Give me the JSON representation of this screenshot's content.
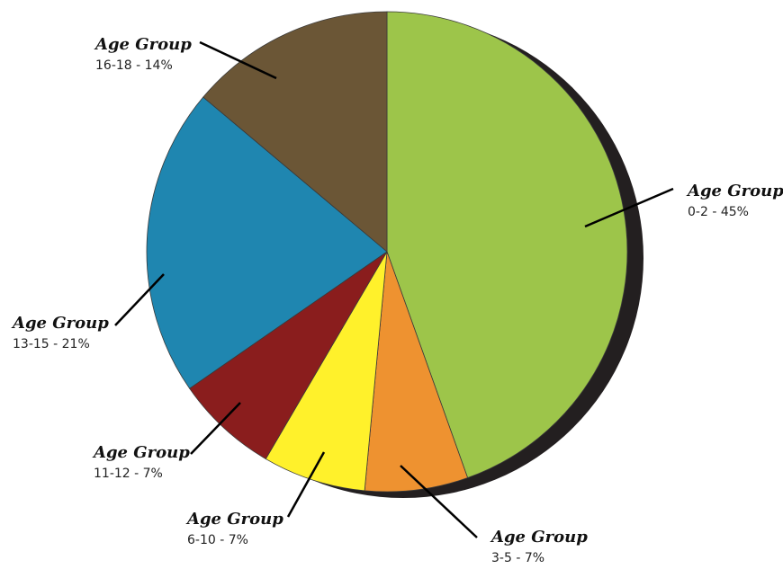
{
  "chart_data": {
    "type": "pie",
    "slices": [
      {
        "title": "Age Group",
        "category": "0-2",
        "value": 45,
        "value_text": "45%",
        "color": "#9dc54a"
      },
      {
        "title": "Age Group",
        "category": "3-5",
        "value": 7,
        "value_text": "7%",
        "color": "#ee9230"
      },
      {
        "title": "Age Group",
        "category": "6-10",
        "value": 7,
        "value_text": "7%",
        "color": "#fff12b"
      },
      {
        "title": "Age Group",
        "category": "11-12",
        "value": 7,
        "value_text": "7%",
        "color": "#8a1d1d"
      },
      {
        "title": "Age Group",
        "category": "13-15",
        "value": 21,
        "value_text": "21%",
        "color": "#1f86b0"
      },
      {
        "title": "Age Group",
        "category": "16-18",
        "value": 14,
        "value_text": "14%",
        "color": "#6b5636"
      }
    ],
    "separator": "-",
    "shadow_color": "#231f20"
  }
}
